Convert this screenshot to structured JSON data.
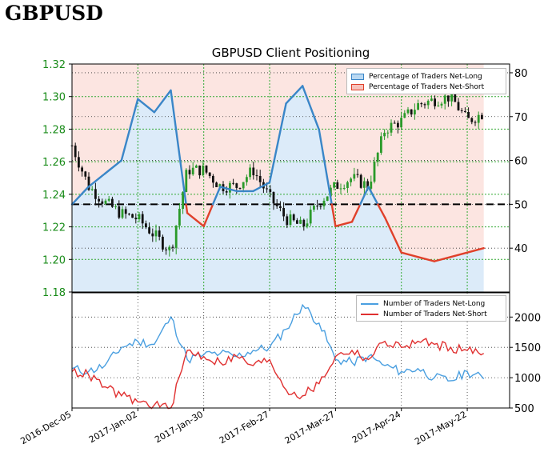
{
  "header": {
    "title": "GBPUSD"
  },
  "chart_data": {
    "type": "line",
    "title": "GBPUSD Client Positioning",
    "x_tick_labels": [
      "2016-Dec-05",
      "2017-Jan-02",
      "2017-Jan-30",
      "2017-Feb-27",
      "2017-Mar-27",
      "2017-Apr-24",
      "2017-May-22"
    ],
    "top_panel": {
      "left_axis": {
        "ylim": [
          1.18,
          1.32
        ],
        "tick_labels": [
          "1.32",
          "1.30",
          "1.28",
          "1.26",
          "1.24",
          "1.22",
          "1.20",
          "1.18"
        ],
        "color": "#1a8c1a"
      },
      "right_axis": {
        "ylim": [
          30,
          82
        ],
        "tick_labels": [
          "80",
          "70",
          "60",
          "50",
          "40"
        ]
      },
      "legend": [
        "Percentage of Traders Net-Long",
        "Percentage of Traders Net-Short"
      ],
      "reference_line": 50,
      "price_series": {
        "name": "GBPUSD",
        "type": "candlestick",
        "x": [
          "2016-12-05",
          "2016-12-12",
          "2016-12-19",
          "2016-12-26",
          "2017-01-02",
          "2017-01-09",
          "2017-01-16",
          "2017-01-23",
          "2017-01-30",
          "2017-02-06",
          "2017-02-13",
          "2017-02-20",
          "2017-02-27",
          "2017-03-06",
          "2017-03-13",
          "2017-03-20",
          "2017-03-27",
          "2017-04-03",
          "2017-04-10",
          "2017-04-17",
          "2017-04-24",
          "2017-05-01",
          "2017-05-08",
          "2017-05-15",
          "2017-05-22",
          "2017-05-29"
        ],
        "close": [
          1.27,
          1.245,
          1.235,
          1.228,
          1.225,
          1.215,
          1.205,
          1.255,
          1.255,
          1.245,
          1.245,
          1.255,
          1.238,
          1.225,
          1.22,
          1.235,
          1.245,
          1.25,
          1.245,
          1.28,
          1.285,
          1.295,
          1.298,
          1.3,
          1.285,
          1.29
        ]
      },
      "percent_net_long": {
        "x": [
          "2016-12-05",
          "2016-12-12",
          "2016-12-19",
          "2016-12-26",
          "2017-01-02",
          "2017-01-09",
          "2017-01-16",
          "2017-01-23",
          "2017-01-30",
          "2017-02-06",
          "2017-02-13",
          "2017-02-20",
          "2017-02-27",
          "2017-03-06",
          "2017-03-13",
          "2017-03-20",
          "2017-03-27",
          "2017-04-03",
          "2017-04-10",
          "2017-04-17",
          "2017-04-24",
          "2017-05-01",
          "2017-05-08",
          "2017-05-15",
          "2017-05-22",
          "2017-05-29"
        ],
        "values": [
          50,
          54,
          57,
          60,
          74,
          71,
          76,
          48,
          45,
          54,
          53,
          53,
          55,
          73,
          77,
          67,
          45,
          46,
          54,
          47,
          39,
          38,
          37,
          38,
          39,
          40
        ]
      }
    },
    "bottom_panel": {
      "right_axis": {
        "ylim": [
          500,
          2400
        ],
        "tick_labels": [
          "2000",
          "1500",
          "1000",
          "500"
        ]
      },
      "legend": [
        "Number of Traders Net-Long",
        "Number of Traders Net-Short"
      ],
      "series": [
        {
          "name": "Number of Traders Net-Long",
          "color": "#4a9fe0",
          "x": [
            "2016-12-05",
            "2016-12-12",
            "2016-12-19",
            "2016-12-26",
            "2017-01-02",
            "2017-01-09",
            "2017-01-16",
            "2017-01-23",
            "2017-01-30",
            "2017-02-06",
            "2017-02-13",
            "2017-02-20",
            "2017-02-27",
            "2017-03-06",
            "2017-03-13",
            "2017-03-20",
            "2017-03-27",
            "2017-04-03",
            "2017-04-10",
            "2017-04-17",
            "2017-04-24",
            "2017-05-01",
            "2017-05-08",
            "2017-05-15",
            "2017-05-22",
            "2017-05-29"
          ],
          "values": [
            1150,
            1100,
            1200,
            1500,
            1600,
            1550,
            2000,
            1300,
            1380,
            1400,
            1350,
            1450,
            1500,
            1800,
            2200,
            1900,
            1300,
            1250,
            1350,
            1200,
            1100,
            1150,
            1000,
            950,
            1100,
            980
          ]
        },
        {
          "name": "Number of Traders Net-Short",
          "color": "#e03030",
          "x": [
            "2016-12-05",
            "2016-12-12",
            "2016-12-19",
            "2016-12-26",
            "2017-01-02",
            "2017-01-09",
            "2017-01-16",
            "2017-01-23",
            "2017-01-30",
            "2017-02-06",
            "2017-02-13",
            "2017-02-20",
            "2017-02-27",
            "2017-03-06",
            "2017-03-13",
            "2017-03-20",
            "2017-03-27",
            "2017-04-03",
            "2017-04-10",
            "2017-04-17",
            "2017-04-24",
            "2017-05-01",
            "2017-05-08",
            "2017-05-15",
            "2017-05-22",
            "2017-05-29"
          ],
          "values": [
            1100,
            1050,
            850,
            700,
            600,
            550,
            500,
            1450,
            1350,
            1250,
            1350,
            1200,
            1300,
            800,
            700,
            900,
            1350,
            1450,
            1300,
            1600,
            1500,
            1600,
            1550,
            1500,
            1450,
            1400
          ]
        }
      ]
    },
    "colors": {
      "net_long_fill": "#d6e8f8",
      "net_short_fill": "#fbe0dc",
      "net_long_line": "#3a86c8",
      "net_short_line": "#e0402a",
      "candle_up": "#2a9a2a",
      "candle_down": "#111111",
      "grid_green": "#33aa33",
      "axis_green": "#1a8c1a",
      "legend_long_swatch": "#b9d8f2",
      "legend_short_swatch": "#f7c2bb"
    }
  }
}
